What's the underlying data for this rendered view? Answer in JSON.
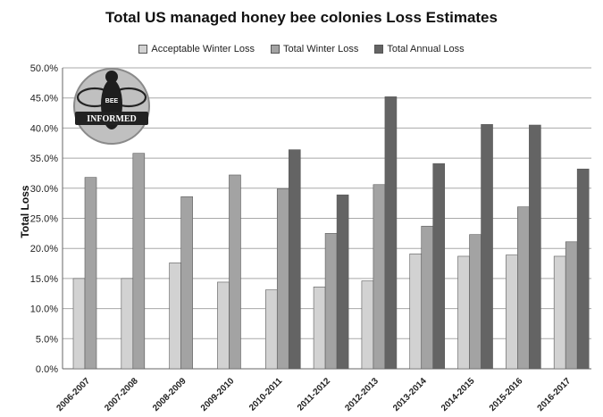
{
  "colors": {
    "acceptable": "#d2d2d2",
    "winter": "#a3a3a3",
    "annual": "#646464",
    "grid": "#a8a8a8",
    "logo_circle": "#c0c0c0",
    "logo_text": "#ffffff"
  },
  "logo": {
    "icon": "bee-informed-logo-icon",
    "text_top": "BEE",
    "text_bottom": "INFORMED"
  },
  "chart_data": {
    "type": "bar",
    "title": "Total US managed honey bee colonies Loss Estimates",
    "ylabel": "Total Loss",
    "xlabel": "",
    "ylim": [
      0,
      50
    ],
    "y_ticks": [
      "0.0%",
      "5.0%",
      "10.0%",
      "15.0%",
      "20.0%",
      "25.0%",
      "30.0%",
      "35.0%",
      "40.0%",
      "45.0%",
      "50.0%"
    ],
    "grid": true,
    "legend_position": "top",
    "categories": [
      "2006-2007",
      "2007-2008",
      "2008-2009",
      "2009-2010",
      "2010-2011",
      "2011-2012",
      "2012-2013",
      "2013-2014",
      "2014-2015",
      "2015-2016",
      "2016-2017"
    ],
    "series": [
      {
        "name": "Acceptable Winter Loss",
        "values": [
          15.0,
          15.0,
          17.6,
          14.4,
          13.1,
          13.6,
          14.6,
          19.1,
          18.7,
          18.9,
          18.7
        ]
      },
      {
        "name": "Total Winter Loss",
        "values": [
          31.8,
          35.8,
          28.6,
          32.2,
          29.9,
          22.5,
          30.6,
          23.7,
          22.3,
          26.9,
          21.1
        ]
      },
      {
        "name": "Total Annual Loss",
        "values": [
          null,
          null,
          null,
          null,
          36.4,
          28.9,
          45.2,
          34.1,
          40.6,
          40.5,
          33.2
        ]
      }
    ]
  }
}
